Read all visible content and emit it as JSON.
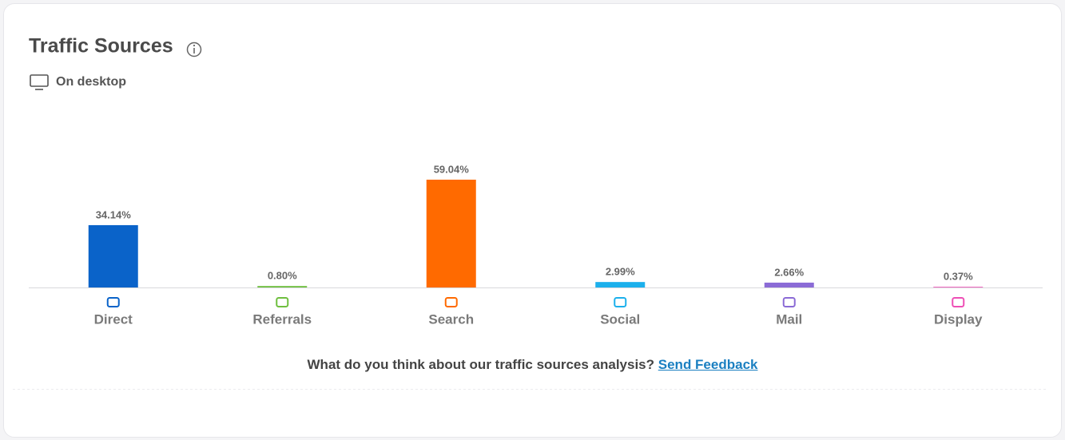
{
  "chart_data": {
    "type": "bar",
    "title": "Traffic Sources",
    "subtitle": "On desktop",
    "categories": [
      "Direct",
      "Referrals",
      "Search",
      "Social",
      "Mail",
      "Display"
    ],
    "values": [
      34.14,
      0.8,
      59.04,
      2.99,
      2.66,
      0.37
    ],
    "value_labels": [
      "34.14%",
      "0.80%",
      "59.04%",
      "2.99%",
      "2.66%",
      "0.37%"
    ],
    "colors": [
      "#0a63c9",
      "#6fbf3f",
      "#ff6a00",
      "#1cb0ec",
      "#8b6bd6",
      "#ee4fb6"
    ],
    "footer": {
      "question": "What do you think about our traffic sources analysis?",
      "link": "Send Feedback"
    }
  }
}
